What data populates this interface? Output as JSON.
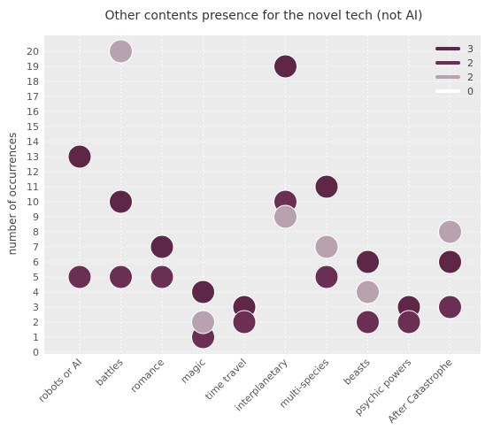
{
  "chart_data": {
    "type": "scatter",
    "title": "Other contents presence for the novel tech (not AI)",
    "xlabel": "",
    "ylabel": "number of occurrences",
    "ylim": [
      0,
      21
    ],
    "yticks": [
      0,
      1,
      2,
      3,
      4,
      5,
      6,
      7,
      8,
      9,
      10,
      11,
      12,
      13,
      14,
      15,
      16,
      17,
      18,
      19,
      20
    ],
    "grid": true,
    "legend_position": "top-right",
    "categories": [
      "robots or AI",
      "battles",
      "romance",
      "magic",
      "time travel",
      "interplanetary",
      "multi-species",
      "beasts",
      "psychic powers",
      "After Catastrophe"
    ],
    "series": [
      {
        "name": "3",
        "color": "#5e2748",
        "values": [
          13,
          10,
          7,
          4,
          3,
          19,
          11,
          6,
          3,
          6
        ]
      },
      {
        "name": "2",
        "color": "#6a2f53",
        "values": [
          5,
          5,
          5,
          1,
          2,
          10,
          5,
          2,
          2,
          3
        ]
      },
      {
        "name": "2",
        "color": "#b9a2b0",
        "values": [
          null,
          20,
          null,
          2,
          null,
          9,
          7,
          4,
          null,
          8
        ]
      },
      {
        "name": "0",
        "color": "#ffffff",
        "values": [
          null,
          null,
          null,
          null,
          null,
          null,
          null,
          null,
          null,
          null
        ]
      }
    ]
  }
}
